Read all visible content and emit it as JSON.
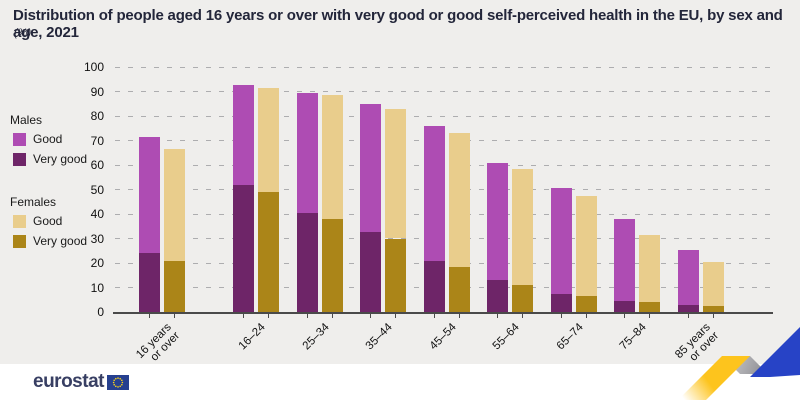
{
  "title": "Distribution of people aged 16 years or over with very good or good self-perceived health in the EU, by sex and age, 2021",
  "subtitle": "(%)",
  "legend": {
    "males_title": "Males",
    "females_title": "Females",
    "good_label": "Good",
    "very_good_label": "Very good"
  },
  "footer": {
    "brand": "eurostat"
  },
  "colors": {
    "male_good": "#ae4cb3",
    "male_very_good": "#6e2568",
    "female_good": "#e9cd8c",
    "female_very_good": "#ab8518",
    "chart_background": "#efeeec",
    "title_text": "#23263a",
    "axis_text": "#111111",
    "gridline": "#adadaf",
    "axis_line": "#4a4a4a",
    "logo_blue": "#383f63",
    "flag_blue": "#26408f",
    "flag_stars": "#ffd617",
    "ribbon_yellow": "#fdc41d",
    "ribbon_gray": "#9d9da1",
    "ribbon_blue": "#2743c6"
  },
  "chart_data": {
    "type": "bar",
    "stacked": true,
    "title": "Distribution of people aged 16 years or over with very good or good self-perceived health in the EU, by sex and age, 2021",
    "unit": "%",
    "categories": [
      "16 years\nor over",
      "16–24",
      "25–34",
      "35–44",
      "45–54",
      "55–64",
      "65–74",
      "75–84",
      "85 years\nor over"
    ],
    "series": [
      {
        "name": "Males – Very good",
        "color_key": "male_very_good",
        "values": [
          24,
          52,
          40.5,
          32.5,
          21,
          13,
          7.5,
          4.5,
          3
        ]
      },
      {
        "name": "Males – Good",
        "color_key": "male_good",
        "values": [
          47.5,
          40.5,
          49,
          52.5,
          55,
          48,
          43,
          33.5,
          22.5
        ]
      },
      {
        "name": "Females – Very good",
        "color_key": "female_very_good",
        "values": [
          21,
          49,
          38,
          30,
          18.5,
          11,
          6.5,
          4,
          2.5
        ]
      },
      {
        "name": "Females – Good",
        "color_key": "female_good",
        "values": [
          45.5,
          42.5,
          50.5,
          53,
          54.5,
          47.5,
          41,
          27.5,
          18
        ]
      }
    ],
    "stack_totals": {
      "males": [
        71.5,
        92.5,
        89.5,
        85,
        76,
        61,
        50.5,
        38,
        25.5
      ],
      "females": [
        66.5,
        91.5,
        88.5,
        83,
        73,
        58.5,
        47.5,
        31.5,
        20.5
      ]
    },
    "ylim": [
      0,
      100
    ],
    "ytick_step": 10,
    "grid": "dashed-horizontal",
    "legend_position": "left"
  }
}
